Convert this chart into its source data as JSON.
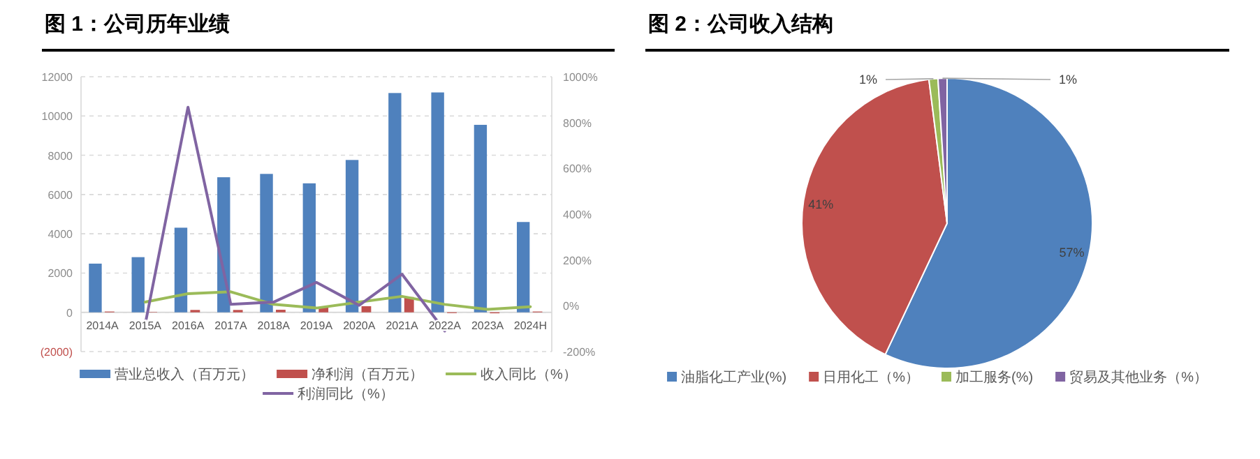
{
  "chart_data": [
    {
      "type": "bar",
      "title": "图 1：公司历年业绩",
      "categories": [
        "2014A",
        "2015A",
        "2016A",
        "2017A",
        "2018A",
        "2019A",
        "2020A",
        "2021A",
        "2022A",
        "2023A",
        "2024H"
      ],
      "series": [
        {
          "name": "营业总收入（百万元）",
          "type": "bar",
          "color": "#4f81bd",
          "values": [
            2480,
            2810,
            4310,
            6880,
            7050,
            6570,
            7760,
            11170,
            11200,
            9550,
            4600
          ]
        },
        {
          "name": "净利润（百万元）",
          "type": "bar",
          "color": "#c0504d",
          "values": [
            40,
            20,
            120,
            120,
            130,
            260,
            310,
            780,
            -40,
            -50,
            40
          ]
        },
        {
          "name": "收入同比（%）",
          "type": "line",
          "axis": "y2",
          "color": "#9bbb59",
          "values": [
            null,
            16,
            53,
            61,
            6,
            -10,
            16,
            41,
            6,
            -16,
            -4
          ]
        },
        {
          "name": "利润同比（%）",
          "type": "line",
          "axis": "y2",
          "color": "#8064a2",
          "values": [
            null,
            -81,
            867,
            6,
            16,
            102,
            2,
            138,
            -110,
            null,
            null
          ]
        }
      ],
      "ylim": [
        -2000,
        12000
      ],
      "yticks": [
        {
          "value": -2000,
          "label": "(2000)"
        },
        0,
        2000,
        4000,
        6000,
        8000,
        10000,
        12000
      ],
      "y2lim": [
        -200,
        1000
      ],
      "y2ticks": [
        {
          "value": -200,
          "label": "-200%"
        },
        {
          "value": 0,
          "label": "0%"
        },
        {
          "value": 200,
          "label": "200%"
        },
        {
          "value": 400,
          "label": "400%"
        },
        {
          "value": 600,
          "label": "600%"
        },
        {
          "value": 800,
          "label": "800%"
        },
        {
          "value": 1000,
          "label": "1000%"
        }
      ],
      "grid": "y",
      "legend": "bottom",
      "marker": "none",
      "line_style": "solid"
    },
    {
      "type": "pie",
      "title": "图 2：公司收入结构",
      "categories": [
        "油脂化工产业(%)",
        "日用化工（%）",
        "加工服务(%)",
        "贸易及其他业务（%）"
      ],
      "values": [
        57,
        41,
        1,
        1
      ],
      "colors": [
        "#4f81bd",
        "#c0504d",
        "#9bbb59",
        "#8064a2"
      ],
      "value_labels": [
        "57%",
        "41%",
        "1%",
        "1%"
      ],
      "legend": "bottom"
    }
  ]
}
